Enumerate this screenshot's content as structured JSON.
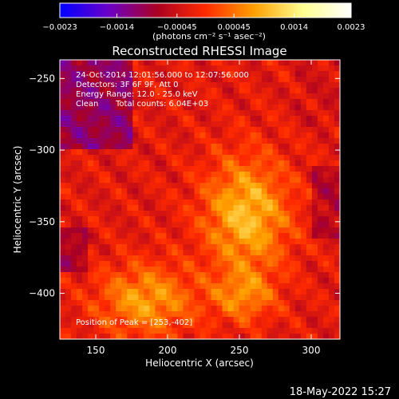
{
  "chart_data": {
    "type": "heatmap",
    "title": "Reconstructed RHESSI Image",
    "xlabel": "Heliocentric X (arcsec)",
    "ylabel": "Heliocentric Y (arcsec)",
    "xlim": [
      125,
      320
    ],
    "ylim": [
      -432,
      -237
    ],
    "x_ticks": [
      150,
      200,
      250,
      300
    ],
    "y_ticks": [
      -250,
      -300,
      -350,
      -400
    ],
    "x_tick_labels": [
      "150",
      "200",
      "250",
      "300"
    ],
    "y_tick_labels": [
      "−250",
      "−300",
      "−350",
      "−400"
    ],
    "colorbar": {
      "range": [
        -0.0023,
        0.0023
      ],
      "ticks": [
        -0.0023,
        -0.0014,
        -0.00045,
        0.00045,
        0.0014,
        0.0023
      ],
      "tick_labels": [
        "−0.0023",
        "−0.0014",
        "−0.00045",
        "0.00045",
        "0.0014",
        "0.0023"
      ],
      "units_label": "(photons cm⁻² s⁻¹ asec⁻²)",
      "colors": [
        "#0000ff",
        "#6a00c8",
        "#aa0022",
        "#ff2a00",
        "#ffa000",
        "#ffff90",
        "#ffffff"
      ]
    },
    "annotations": [
      "24-Oct-2014 12:01:56.000 to 12:07:56.000",
      "Detectors: 3F 6F 9F, Att 0",
      "Energy Range: 12.0 - 25.0 keV",
      "Clean",
      "Total counts: 6.04E+03"
    ],
    "peak_label": "Position of Peak = [253,-402]",
    "peak": [
      253,
      -402
    ],
    "grid": false,
    "legend": "none"
  },
  "footer": {
    "timestamp": "18-May-2022 15:27"
  }
}
